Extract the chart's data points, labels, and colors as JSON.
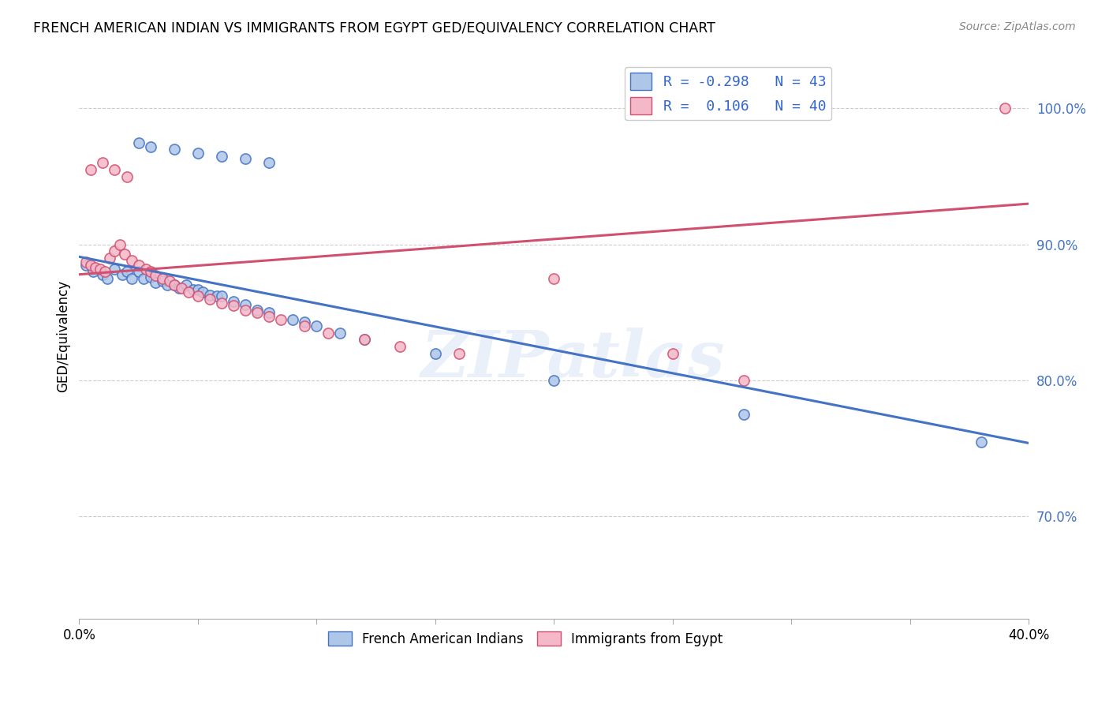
{
  "title": "FRENCH AMERICAN INDIAN VS IMMIGRANTS FROM EGYPT GED/EQUIVALENCY CORRELATION CHART",
  "source": "Source: ZipAtlas.com",
  "ylabel": "GED/Equivalency",
  "ytick_labels": [
    "70.0%",
    "80.0%",
    "90.0%",
    "100.0%"
  ],
  "ytick_values": [
    0.7,
    0.8,
    0.9,
    1.0
  ],
  "xlim": [
    0.0,
    0.4
  ],
  "ylim": [
    0.625,
    1.04
  ],
  "blue_color": "#aec6e8",
  "pink_color": "#f5b8c8",
  "blue_line_color": "#4472c4",
  "pink_line_color": "#d05070",
  "watermark": "ZIPatlas",
  "blue_trend_x0": 0.0,
  "blue_trend_y0": 0.891,
  "blue_trend_x1": 0.4,
  "blue_trend_y1": 0.754,
  "pink_trend_x0": 0.0,
  "pink_trend_y0": 0.878,
  "pink_trend_x1": 0.4,
  "pink_trend_y1": 0.93,
  "blue_scatter_x": [
    0.003,
    0.006,
    0.01,
    0.012,
    0.015,
    0.018,
    0.02,
    0.022,
    0.025,
    0.027,
    0.03,
    0.032,
    0.035,
    0.037,
    0.04,
    0.042,
    0.045,
    0.048,
    0.05,
    0.052,
    0.055,
    0.058,
    0.06,
    0.065,
    0.07,
    0.075,
    0.08,
    0.09,
    0.095,
    0.1,
    0.11,
    0.12,
    0.15,
    0.2,
    0.28,
    0.38,
    0.025,
    0.03,
    0.04,
    0.05,
    0.06,
    0.07,
    0.08
  ],
  "blue_scatter_y": [
    0.885,
    0.88,
    0.878,
    0.875,
    0.882,
    0.878,
    0.88,
    0.875,
    0.88,
    0.875,
    0.876,
    0.872,
    0.873,
    0.87,
    0.87,
    0.868,
    0.87,
    0.867,
    0.867,
    0.865,
    0.863,
    0.862,
    0.862,
    0.858,
    0.856,
    0.852,
    0.85,
    0.845,
    0.843,
    0.84,
    0.835,
    0.83,
    0.82,
    0.8,
    0.775,
    0.755,
    0.975,
    0.972,
    0.97,
    0.967,
    0.965,
    0.963,
    0.96
  ],
  "pink_scatter_x": [
    0.003,
    0.005,
    0.007,
    0.009,
    0.011,
    0.013,
    0.015,
    0.017,
    0.019,
    0.022,
    0.025,
    0.028,
    0.03,
    0.032,
    0.035,
    0.038,
    0.04,
    0.043,
    0.046,
    0.05,
    0.055,
    0.06,
    0.065,
    0.07,
    0.075,
    0.08,
    0.085,
    0.095,
    0.105,
    0.12,
    0.135,
    0.16,
    0.2,
    0.25,
    0.28,
    0.39,
    0.005,
    0.01,
    0.015,
    0.02
  ],
  "pink_scatter_y": [
    0.887,
    0.885,
    0.883,
    0.882,
    0.88,
    0.89,
    0.895,
    0.9,
    0.893,
    0.888,
    0.885,
    0.882,
    0.88,
    0.877,
    0.875,
    0.873,
    0.87,
    0.868,
    0.865,
    0.862,
    0.86,
    0.857,
    0.855,
    0.852,
    0.85,
    0.847,
    0.845,
    0.84,
    0.835,
    0.83,
    0.825,
    0.82,
    0.875,
    0.82,
    0.8,
    1.0,
    0.955,
    0.96,
    0.955,
    0.95
  ]
}
